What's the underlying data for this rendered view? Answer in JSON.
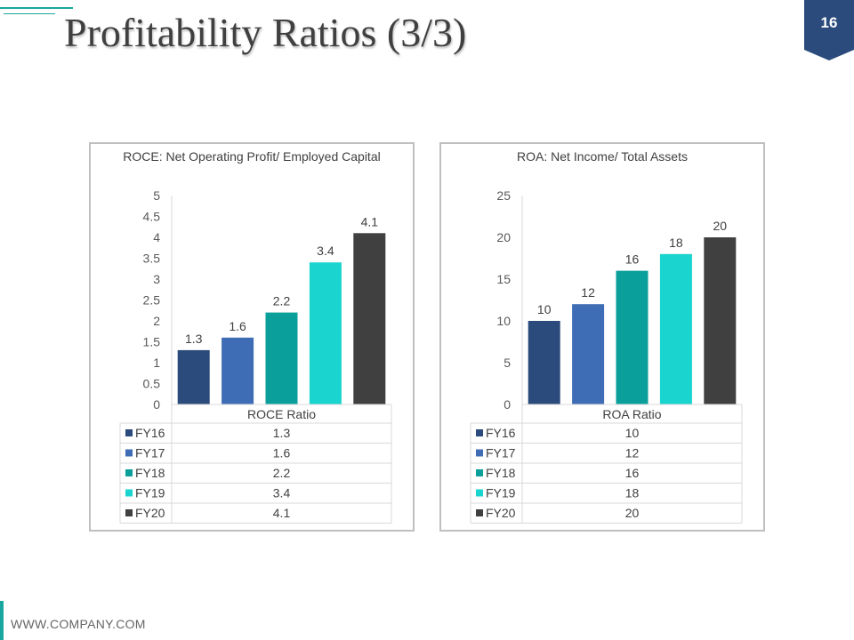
{
  "page": {
    "title": "Profitability Ratios (3/3)",
    "slide_number": "16",
    "footer": "WWW.COMPANY.COM",
    "accent_color": "#1aa6a0",
    "badge_color": "#2a4b7c"
  },
  "chart_data": [
    {
      "type": "bar",
      "title": "ROCE: Net Operating Profit/ Employed Capital",
      "categories": [
        "FY16",
        "FY17",
        "FY18",
        "FY19",
        "FY20"
      ],
      "series": [
        {
          "name": "ROCE Ratio",
          "values": [
            1.3,
            1.6,
            2.2,
            3.4,
            4.1
          ]
        }
      ],
      "value_labels": [
        "1.3",
        "1.6",
        "2.2",
        "3.4",
        "4.1"
      ],
      "yticks": [
        "0",
        "0.5",
        "1",
        "1.5",
        "2",
        "2.5",
        "3",
        "3.5",
        "4",
        "4.5",
        "5"
      ],
      "ylim": [
        0,
        5
      ],
      "colors": [
        "#2a4b7c",
        "#3e6db5",
        "#0a9f9a",
        "#1ad4cf",
        "#404040"
      ],
      "data_table": true,
      "xlabel": "",
      "ylabel": ""
    },
    {
      "type": "bar",
      "title": "ROA: Net Income/ Total Assets",
      "categories": [
        "FY16",
        "FY17",
        "FY18",
        "FY19",
        "FY20"
      ],
      "series": [
        {
          "name": "ROA Ratio",
          "values": [
            10,
            12,
            16,
            18,
            20
          ]
        }
      ],
      "value_labels": [
        "10",
        "12",
        "16",
        "18",
        "20"
      ],
      "yticks": [
        "0",
        "5",
        "10",
        "15",
        "20",
        "25"
      ],
      "ylim": [
        0,
        25
      ],
      "colors": [
        "#2a4b7c",
        "#3e6db5",
        "#0a9f9a",
        "#1ad4cf",
        "#404040"
      ],
      "data_table": true,
      "xlabel": "",
      "ylabel": ""
    }
  ]
}
